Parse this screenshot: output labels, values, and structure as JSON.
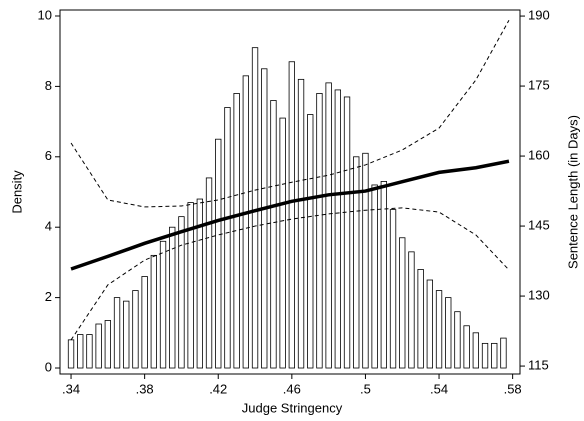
{
  "chart_data": {
    "type": "histogram",
    "x_label": "Judge Stringency",
    "y_label": "Density",
    "y2_label": "Sentence Length (in Days)",
    "bins": [
      0.3375,
      0.3425,
      0.3475,
      0.3525,
      0.3575,
      0.3625,
      0.3675,
      0.3725,
      0.3775,
      0.3825,
      0.3875,
      0.3925,
      0.3975,
      0.4025,
      0.4075,
      0.4125,
      0.4175,
      0.4225,
      0.4275,
      0.4325,
      0.4375,
      0.4425,
      0.4475,
      0.4525,
      0.4575,
      0.4625,
      0.4675,
      0.4725,
      0.4775,
      0.4825,
      0.4875,
      0.4925,
      0.4975,
      0.5025,
      0.5075,
      0.5125,
      0.5175,
      0.5225,
      0.5275,
      0.5325,
      0.5375,
      0.5425,
      0.5475,
      0.5525,
      0.5575,
      0.5625,
      0.5675,
      0.5725,
      0.5775
    ],
    "values": [
      0.8,
      0.95,
      0.95,
      1.25,
      1.35,
      2.0,
      1.9,
      2.2,
      2.6,
      3.2,
      3.6,
      4.0,
      4.3,
      4.7,
      4.8,
      5.4,
      6.5,
      7.4,
      7.8,
      8.3,
      9.1,
      8.5,
      7.6,
      7.1,
      8.7,
      8.2,
      7.2,
      7.8,
      8.1,
      7.9,
      7.7,
      6.0,
      6.1,
      5.2,
      5.3,
      4.5,
      3.7,
      3.3,
      2.8,
      2.5,
      2.2,
      2.0,
      1.6,
      1.2,
      1.0,
      0.7,
      0.7,
      0.85
    ],
    "color": "#ffffff",
    "series": [
      {
        "axis": "y2",
        "style": "solid",
        "color": "#000000",
        "x": [
          0.34,
          0.36,
          0.38,
          0.4,
          0.42,
          0.44,
          0.46,
          0.48,
          0.5,
          0.52,
          0.54,
          0.56,
          0.578
        ],
        "values": [
          135.8,
          138.5,
          141.3,
          143.8,
          146.2,
          148.3,
          150.3,
          151.7,
          152.5,
          154.5,
          156.5,
          157.5,
          158.9
        ]
      },
      {
        "axis": "y2",
        "style": "dashed",
        "color": "#000000",
        "x": [
          0.34,
          0.36,
          0.38,
          0.4,
          0.42,
          0.44,
          0.46,
          0.48,
          0.5,
          0.52,
          0.54,
          0.56,
          0.578
        ],
        "values": [
          162.8,
          150.6,
          149.1,
          149.3,
          150.6,
          152.7,
          154.4,
          155.9,
          158.1,
          161.3,
          166.0,
          176.3,
          189.1
        ]
      },
      {
        "axis": "y2",
        "style": "dashed",
        "color": "#000000",
        "x": [
          0.34,
          0.36,
          0.38,
          0.4,
          0.42,
          0.44,
          0.46,
          0.48,
          0.5,
          0.52,
          0.54,
          0.56,
          0.578
        ],
        "values": [
          120.6,
          132.4,
          137.7,
          140.9,
          143.1,
          145.0,
          146.5,
          147.6,
          148.4,
          148.9,
          148.0,
          143.1,
          135.6
        ]
      }
    ],
    "xlim": [
      0.334,
      0.584
    ],
    "xticks": [
      {
        "value": 0.34,
        "label": ".34"
      },
      {
        "value": 0.38,
        "label": ".38"
      },
      {
        "value": 0.42,
        "label": ".42"
      },
      {
        "value": 0.46,
        "label": ".46"
      },
      {
        "value": 0.5,
        "label": ".5"
      },
      {
        "value": 0.54,
        "label": ".54"
      },
      {
        "value": 0.58,
        "label": ".58"
      }
    ],
    "ylim": [
      -0.17,
      10.17
    ],
    "yticks": [
      0,
      2,
      4,
      6,
      8,
      10
    ],
    "y2lim": [
      113.3,
      191.3
    ],
    "y2ticks": [
      115,
      130,
      145,
      160,
      175,
      190
    ]
  }
}
